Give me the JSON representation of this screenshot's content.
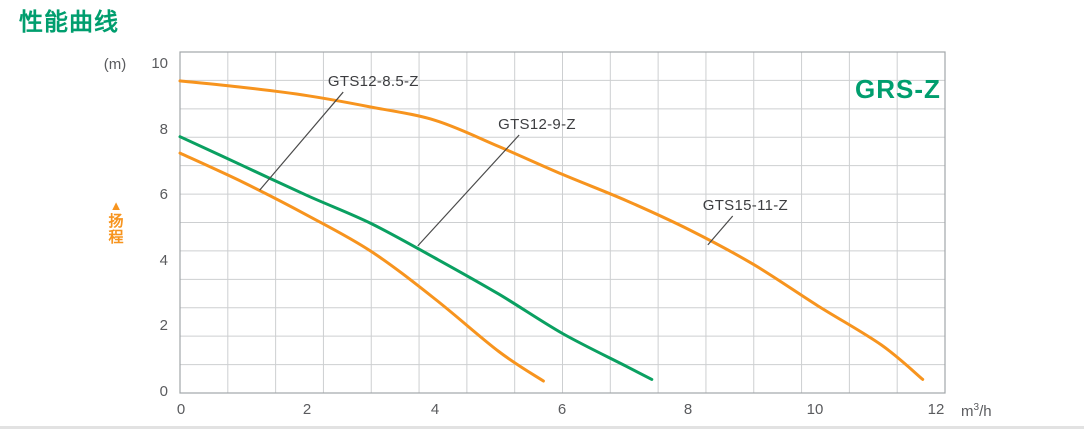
{
  "page": {
    "title": "性能曲线"
  },
  "axes": {
    "y_unit_label": "(m)",
    "y_ticks": [
      "10",
      "8",
      "6",
      "4",
      "2",
      "0"
    ],
    "x_ticks": [
      "0",
      "2",
      "4",
      "6",
      "8",
      "10",
      "12"
    ],
    "x_unit": {
      "base": "m",
      "sup": "3",
      "rest": "/h"
    },
    "y_axis_title": {
      "marker_icon": "▲",
      "chars": [
        "扬",
        "程"
      ]
    }
  },
  "chart_data": {
    "type": "line",
    "title": "性能曲线",
    "xlabel": "m³/h",
    "ylabel": "扬程 (m)",
    "xlim": [
      0,
      12
    ],
    "ylim": [
      0,
      10
    ],
    "grid": true,
    "grid_columns": 16,
    "grid_rows": 12,
    "colors": {
      "orange": "#f7941e",
      "green": "#0aa061",
      "leader": "#4a4a4a",
      "grid": "#cdcfd1",
      "border": "#a2a6a9"
    },
    "series": [
      {
        "name": "GTS15-11-Z",
        "color": "#f7941e",
        "x": [
          0,
          1,
          2,
          3,
          4,
          5,
          6,
          7,
          8,
          9,
          10,
          11,
          11.65
        ],
        "y": [
          9.5,
          9.3,
          9.05,
          8.7,
          8.3,
          7.5,
          6.65,
          5.85,
          4.95,
          3.9,
          2.65,
          1.45,
          0.4
        ]
      },
      {
        "name": "GTS12-9-Z",
        "color": "#0aa061",
        "x": [
          0,
          1,
          2,
          3,
          4,
          5,
          6,
          7,
          7.4
        ],
        "y": [
          7.8,
          6.9,
          6.0,
          5.15,
          4.1,
          3.0,
          1.8,
          0.8,
          0.4
        ]
      },
      {
        "name": "GTS12-8.5-Z",
        "color": "#f7941e",
        "x": [
          0,
          1,
          2,
          3,
          4,
          5,
          5.7
        ],
        "y": [
          7.3,
          6.4,
          5.4,
          4.3,
          2.85,
          1.25,
          0.35
        ]
      }
    ],
    "annotations": [
      {
        "label": "GTS12-8.5-Z",
        "text_at": [
          2.32,
          9.31
        ],
        "leader_from": [
          2.56,
          9.16
        ],
        "leader_to": [
          1.25,
          6.17
        ]
      },
      {
        "label": "GTS12-9-Z",
        "text_at": [
          4.99,
          8.0
        ],
        "leader_from": [
          5.32,
          7.85
        ],
        "leader_to": [
          3.73,
          4.47
        ]
      },
      {
        "label": "GTS15-11-Z",
        "text_at": [
          8.2,
          5.53
        ],
        "leader_from": [
          8.67,
          5.38
        ],
        "leader_to": [
          8.28,
          4.5
        ]
      }
    ],
    "brand_label": "GRS-Z"
  }
}
